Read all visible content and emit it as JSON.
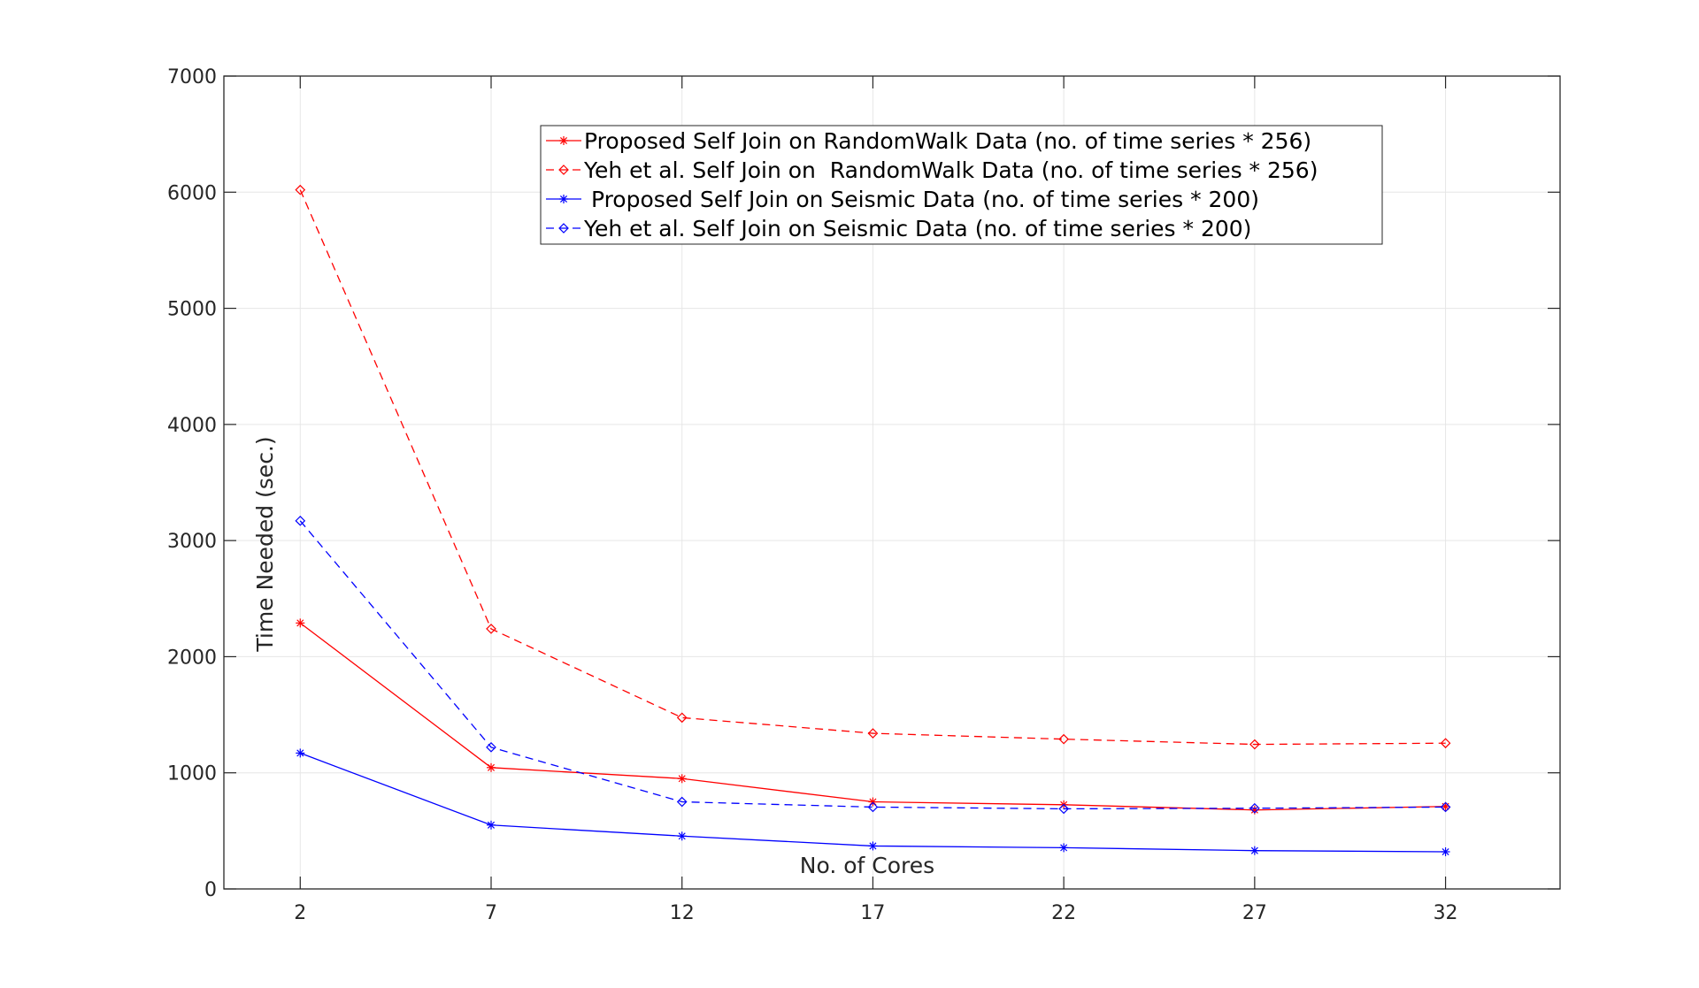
{
  "chart_data": {
    "type": "line",
    "title": "",
    "xlabel": "No. of Cores",
    "ylabel": "Time Needed (sec.)",
    "x": [
      2,
      7,
      12,
      17,
      22,
      27,
      32
    ],
    "xlim": [
      0,
      35
    ],
    "ylim": [
      0,
      7000
    ],
    "xticks": [
      2,
      7,
      12,
      17,
      22,
      27,
      32
    ],
    "yticks": [
      0,
      1000,
      2000,
      3000,
      4000,
      5000,
      6000,
      7000
    ],
    "grid": true,
    "legend_position": "top-center",
    "series": [
      {
        "name": "Proposed Self Join on RandomWalk Data (no. of time series * 256)",
        "color": "#ff0000",
        "line_style": "solid",
        "marker": "asterisk",
        "values": [
          2290,
          1045,
          950,
          750,
          725,
          680,
          710
        ]
      },
      {
        "name": "Yeh et al. Self Join on  RandomWalk Data (no. of time series * 256)",
        "color": "#ff0000",
        "line_style": "dashed",
        "marker": "diamond",
        "values": [
          6020,
          2240,
          1475,
          1340,
          1290,
          1245,
          1255
        ]
      },
      {
        "name": " Proposed Self Join on Seismic Data (no. of time series * 200)",
        "color": "#0000ff",
        "line_style": "solid",
        "marker": "asterisk",
        "values": [
          1170,
          550,
          455,
          370,
          355,
          330,
          320
        ]
      },
      {
        "name": "Yeh et al. Self Join on Seismic Data (no. of time series * 200)",
        "color": "#0000ff",
        "line_style": "dashed",
        "marker": "diamond",
        "values": [
          3170,
          1220,
          750,
          705,
          690,
          695,
          705
        ]
      }
    ]
  }
}
